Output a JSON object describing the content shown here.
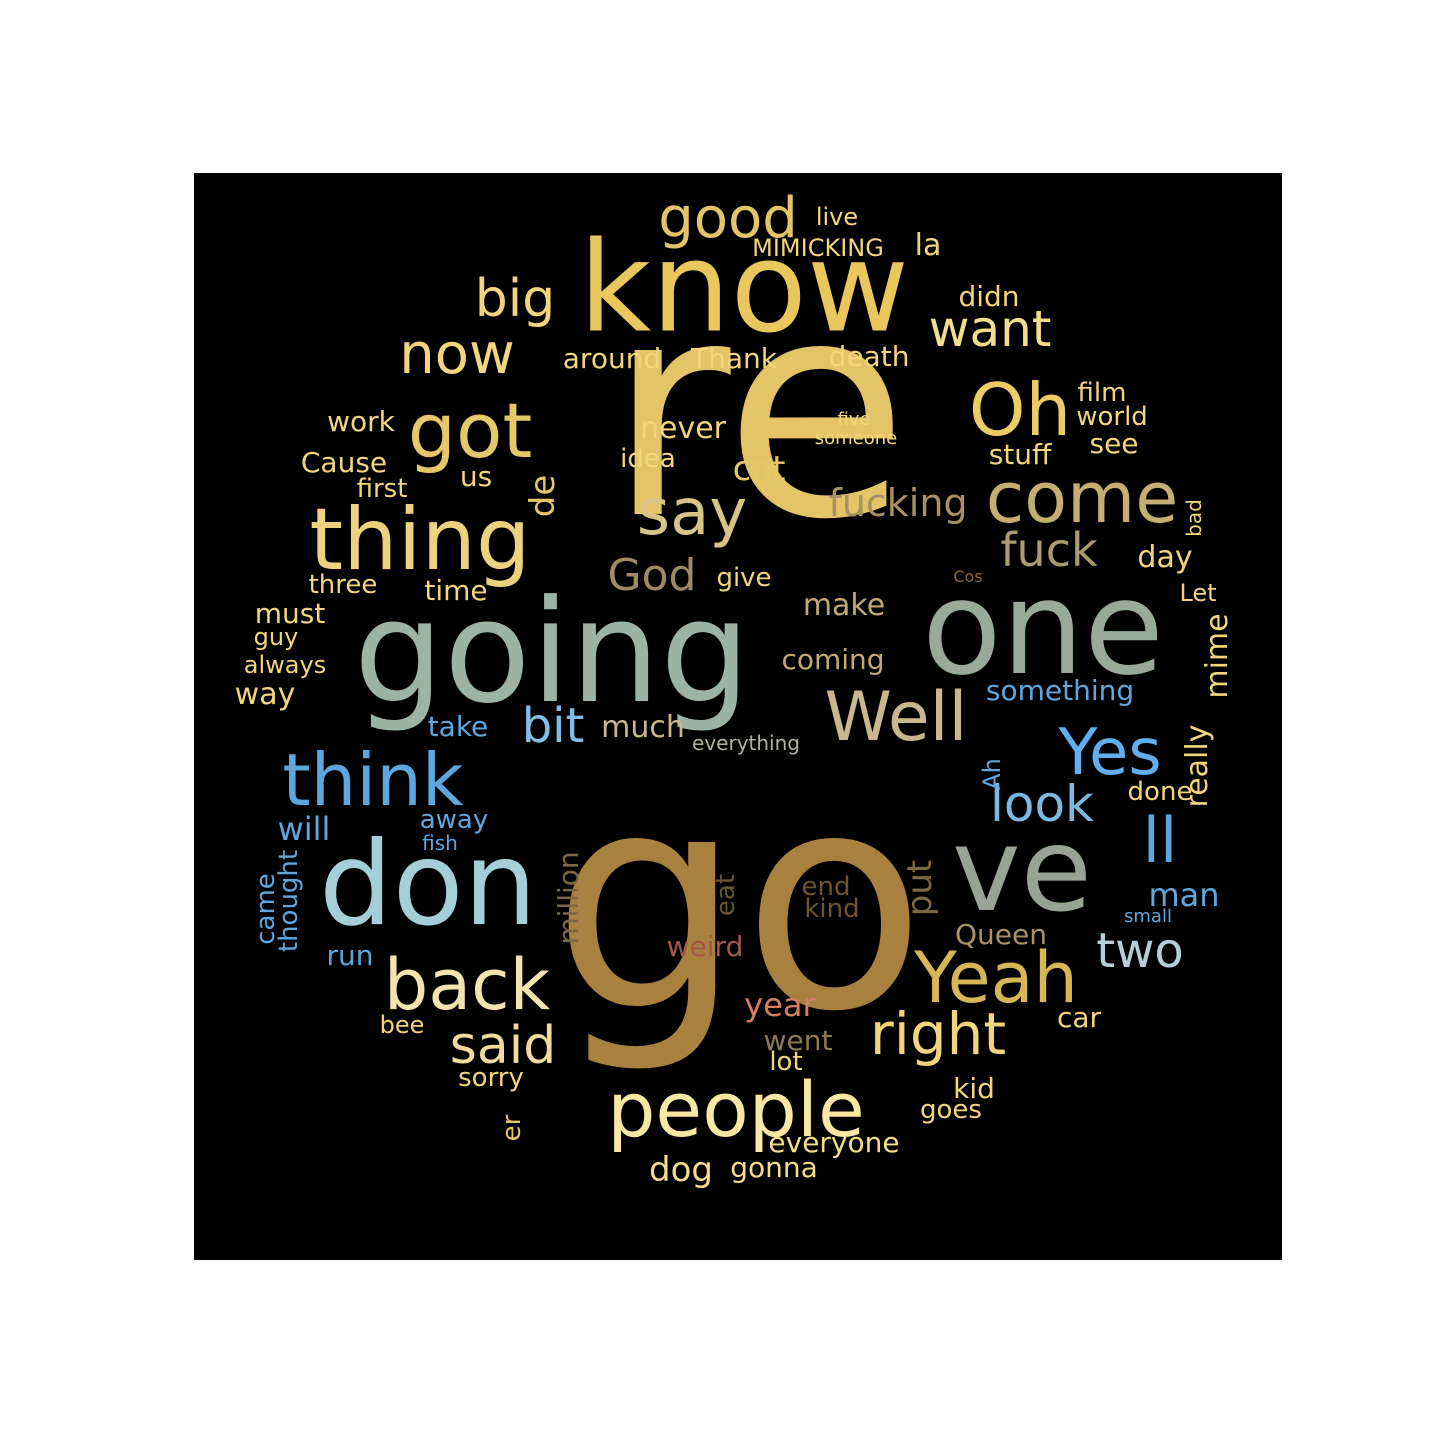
{
  "words": [
    {
      "text": "re",
      "color": "#e3c466"
    },
    {
      "text": "go",
      "color": "#a8813e"
    },
    {
      "text": "know",
      "color": "#e9c75d"
    },
    {
      "text": "going",
      "color": "#9cb4a6"
    },
    {
      "text": "one",
      "color": "#98aa98"
    },
    {
      "text": "don",
      "color": "#a4cfd8"
    },
    {
      "text": "ve",
      "color": "#97a393"
    },
    {
      "text": "thing",
      "color": "#ecd17f"
    },
    {
      "text": "people",
      "color": "#fbe7a4"
    },
    {
      "text": "got",
      "color": "#e5c868"
    },
    {
      "text": "think",
      "color": "#5ea7de"
    },
    {
      "text": "Yeah",
      "color": "#d6b657"
    },
    {
      "text": "back",
      "color": "#f3e4ad"
    },
    {
      "text": "come",
      "color": "#c6ad70"
    },
    {
      "text": "Oh",
      "color": "#ebcc67"
    },
    {
      "text": "Well",
      "color": "#c9b88c"
    },
    {
      "text": "Yes",
      "color": "#62aff0"
    },
    {
      "text": "say",
      "color": "#d9c488"
    },
    {
      "text": "now",
      "color": "#f3d57d"
    },
    {
      "text": "right",
      "color": "#f3d57d"
    },
    {
      "text": "ll",
      "color": "#5ea7de"
    },
    {
      "text": "good",
      "color": "#e3c466"
    },
    {
      "text": "big",
      "color": "#f3d57d"
    },
    {
      "text": "want",
      "color": "#f6dd8b"
    },
    {
      "text": "fuck",
      "color": "#a79d70"
    },
    {
      "text": "said",
      "color": "#f3dc9b"
    },
    {
      "text": "look",
      "color": "#79b9e2"
    },
    {
      "text": "two",
      "color": "#b4d0d6"
    },
    {
      "text": "bit",
      "color": "#82bde6"
    },
    {
      "text": "God",
      "color": "#9c8c63"
    },
    {
      "text": "fucking",
      "color": "#a89165"
    },
    {
      "text": "de",
      "color": "#e5c868"
    },
    {
      "text": "never",
      "color": "#f3d57d"
    },
    {
      "text": "cat",
      "color": "#e5c868"
    },
    {
      "text": "work",
      "color": "#f3d57d"
    },
    {
      "text": "Cause",
      "color": "#f3d57d"
    },
    {
      "text": "first",
      "color": "#f3d57d"
    },
    {
      "text": "us",
      "color": "#f3d57d"
    },
    {
      "text": "idea",
      "color": "#f3d57d"
    },
    {
      "text": "around",
      "color": "#f3d57d"
    },
    {
      "text": "Thank",
      "color": "#f3d57d"
    },
    {
      "text": "death",
      "color": "#f3d57d"
    },
    {
      "text": "didn",
      "color": "#f3d57d"
    },
    {
      "text": "live",
      "color": "#f3d57d"
    },
    {
      "text": "MIMICKING",
      "color": "#f3d57d"
    },
    {
      "text": "la",
      "color": "#f3d57d"
    },
    {
      "text": "film",
      "color": "#f3d57d"
    },
    {
      "text": "world",
      "color": "#f3d57d"
    },
    {
      "text": "see",
      "color": "#f3d57d"
    },
    {
      "text": "stuff",
      "color": "#f3d57d"
    },
    {
      "text": "five",
      "color": "#f3d57d"
    },
    {
      "text": "someone",
      "color": "#f3d57d"
    },
    {
      "text": "bad",
      "color": "#f3d57d"
    },
    {
      "text": "day",
      "color": "#f3d57d"
    },
    {
      "text": "Cos",
      "color": "#8c6a3a"
    },
    {
      "text": "Let",
      "color": "#f3d57d"
    },
    {
      "text": "three",
      "color": "#f3d57d"
    },
    {
      "text": "time",
      "color": "#f3d57d"
    },
    {
      "text": "give",
      "color": "#f3d57d"
    },
    {
      "text": "must",
      "color": "#f3d57d"
    },
    {
      "text": "guy",
      "color": "#f3d57d"
    },
    {
      "text": "always",
      "color": "#f3d57d"
    },
    {
      "text": "way",
      "color": "#f3d57d"
    },
    {
      "text": "make",
      "color": "#c2a96f"
    },
    {
      "text": "coming",
      "color": "#c2a96f"
    },
    {
      "text": "something",
      "color": "#5ea7de"
    },
    {
      "text": "mime",
      "color": "#f3d57d"
    },
    {
      "text": "take",
      "color": "#5ea7de"
    },
    {
      "text": "much",
      "color": "#c9b88c"
    },
    {
      "text": "everything",
      "color": "#b1b1a3"
    },
    {
      "text": "really",
      "color": "#f3d57d"
    },
    {
      "text": "Ah",
      "color": "#5ea7de"
    },
    {
      "text": "done",
      "color": "#f3d57d"
    },
    {
      "text": "will",
      "color": "#5ea7de"
    },
    {
      "text": "away",
      "color": "#5ea7de"
    },
    {
      "text": "fish",
      "color": "#5ea7de"
    },
    {
      "text": "came",
      "color": "#5ea7de"
    },
    {
      "text": "thought",
      "color": "#5ea7de"
    },
    {
      "text": "million",
      "color": "#7d6846"
    },
    {
      "text": "eat",
      "color": "#6b5434"
    },
    {
      "text": "end",
      "color": "#6b5434"
    },
    {
      "text": "kind",
      "color": "#6b5434"
    },
    {
      "text": "put",
      "color": "#7d6846"
    },
    {
      "text": "man",
      "color": "#5ea7de"
    },
    {
      "text": "small",
      "color": "#5ea7de"
    },
    {
      "text": "run",
      "color": "#5ea7de"
    },
    {
      "text": "weird",
      "color": "#a4584d"
    },
    {
      "text": "Queen",
      "color": "#a89165"
    },
    {
      "text": "year",
      "color": "#d67e61"
    },
    {
      "text": "bee",
      "color": "#f3d57d"
    },
    {
      "text": "car",
      "color": "#f3d57d"
    },
    {
      "text": "went",
      "color": "#8c7a55"
    },
    {
      "text": "lot",
      "color": "#f3d57d"
    },
    {
      "text": "sorry",
      "color": "#f3d57d"
    },
    {
      "text": "kid",
      "color": "#f3d57d"
    },
    {
      "text": "goes",
      "color": "#f3d57d"
    },
    {
      "text": "er",
      "color": "#e5c868"
    },
    {
      "text": "everyone",
      "color": "#f6dd8b"
    },
    {
      "text": "dog",
      "color": "#f6dd8b"
    },
    {
      "text": "gonna",
      "color": "#f6dd8b"
    }
  ]
}
